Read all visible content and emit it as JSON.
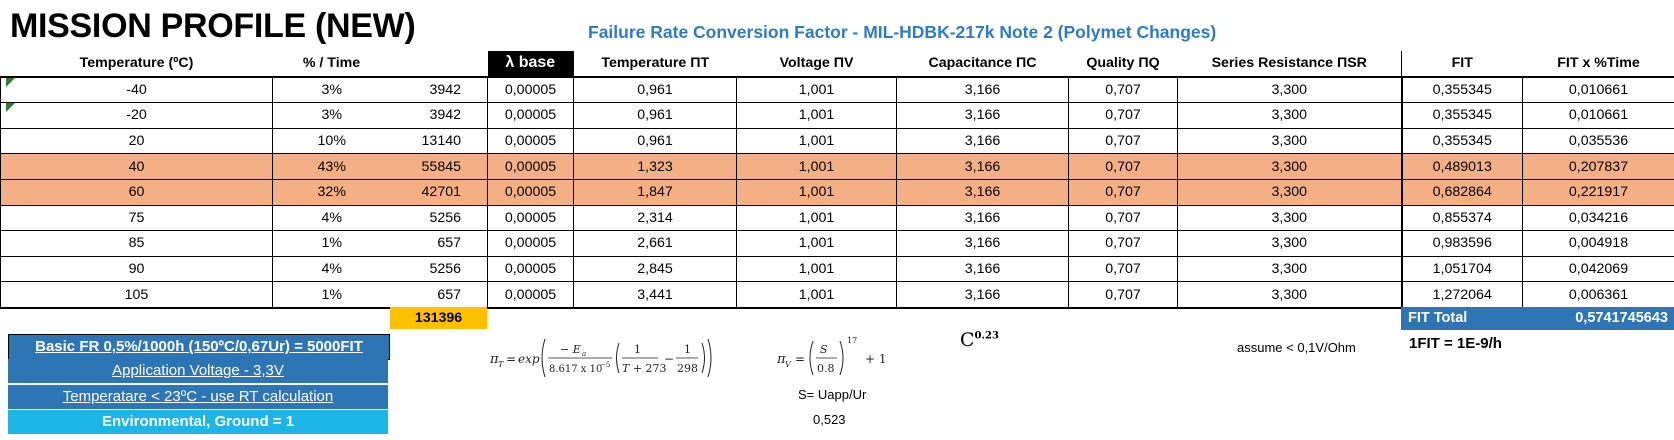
{
  "title": "MISSION PROFILE (NEW)",
  "subtitle": "Failure Rate Conversion Factor - MIL-HDBK-217k Note 2 (Polymet Changes)",
  "headers": {
    "temperature": "Temperature (ºC)",
    "pct_time": "% / Time",
    "hours": "",
    "lambda_base": "λ base",
    "pi_t": "Temperature ΠT",
    "pi_v": "Voltage ΠV",
    "pi_c": "Capacitance ΠC",
    "pi_q": "Quality ΠQ",
    "pi_sr": "Series Resistance ΠSR",
    "fit": "FIT",
    "fit_pct": "FIT x %Time"
  },
  "rows": [
    {
      "temp": "-40",
      "pct": "3%",
      "hours": "3942",
      "lam": "0,00005",
      "pit": "0,961",
      "piv": "1,001",
      "pic": "3,166",
      "piq": "0,707",
      "pisr": "3,300",
      "fit": "0,355345",
      "fitpct": "0,010661"
    },
    {
      "temp": "-20",
      "pct": "3%",
      "hours": "3942",
      "lam": "0,00005",
      "pit": "0,961",
      "piv": "1,001",
      "pic": "3,166",
      "piq": "0,707",
      "pisr": "3,300",
      "fit": "0,355345",
      "fitpct": "0,010661"
    },
    {
      "temp": "20",
      "pct": "10%",
      "hours": "13140",
      "lam": "0,00005",
      "pit": "0,961",
      "piv": "1,001",
      "pic": "3,166",
      "piq": "0,707",
      "pisr": "3,300",
      "fit": "0,355345",
      "fitpct": "0,035536"
    },
    {
      "temp": "40",
      "pct": "43%",
      "hours": "55845",
      "lam": "0,00005",
      "pit": "1,323",
      "piv": "1,001",
      "pic": "3,166",
      "piq": "0,707",
      "pisr": "3,300",
      "fit": "0,489013",
      "fitpct": "0,207837"
    },
    {
      "temp": "60",
      "pct": "32%",
      "hours": "42701",
      "lam": "0,00005",
      "pit": "1,847",
      "piv": "1,001",
      "pic": "3,166",
      "piq": "0,707",
      "pisr": "3,300",
      "fit": "0,682864",
      "fitpct": "0,221917"
    },
    {
      "temp": "75",
      "pct": "4%",
      "hours": "5256",
      "lam": "0,00005",
      "pit": "2,314",
      "piv": "1,001",
      "pic": "3,166",
      "piq": "0,707",
      "pisr": "3,300",
      "fit": "0,855374",
      "fitpct": "0,034216"
    },
    {
      "temp": "85",
      "pct": "1%",
      "hours": "657",
      "lam": "0,00005",
      "pit": "2,661",
      "piv": "1,001",
      "pic": "3,166",
      "piq": "0,707",
      "pisr": "3,300",
      "fit": "0,983596",
      "fitpct": "0,004918"
    },
    {
      "temp": "90",
      "pct": "4%",
      "hours": "5256",
      "lam": "0,00005",
      "pit": "2,845",
      "piv": "1,001",
      "pic": "3,166",
      "piq": "0,707",
      "pisr": "3,300",
      "fit": "1,051704",
      "fitpct": "0,042069"
    },
    {
      "temp": "105",
      "pct": "1%",
      "hours": "657",
      "lam": "0,00005",
      "pit": "3,441",
      "piv": "1,001",
      "pic": "3,166",
      "piq": "0,707",
      "pisr": "3,300",
      "fit": "1,272064",
      "fitpct": "0,006361"
    }
  ],
  "highlight_color": "#f4b084",
  "hours_total": "131396",
  "fit_total": {
    "label": "FIT Total",
    "value": "0,5741745643"
  },
  "notes": {
    "basic_fr": "Basic FR 0,5%/1000h (150ºC/0,67Ur) = 5000FIT",
    "app_voltage": "Application Voltage - 3,3V",
    "temperature": "Temperatare < 23ºC - use RT calculation",
    "environmental": "Environmental, Ground = 1"
  },
  "formulas": {
    "c_factor": "C",
    "c_exp": "0.23",
    "assume": "assume < 0,1V/Ohm",
    "one_fit": "1FIT = 1E-9/h",
    "s_def": "S= Uapp/Ur",
    "s_value": "0,523"
  }
}
